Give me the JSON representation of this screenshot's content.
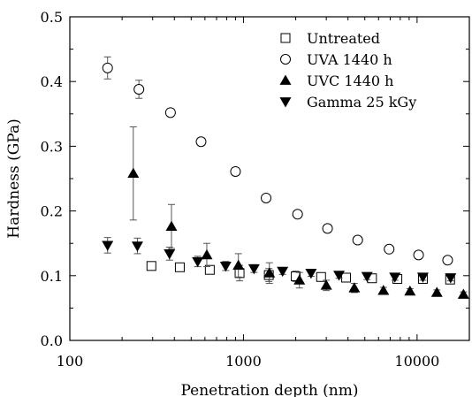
{
  "chart_data": {
    "type": "scatter",
    "xlabel": "Penetration depth (nm)",
    "ylabel": "Hardness (GPa)",
    "xscale": "log",
    "xlim": [
      100,
      20000
    ],
    "ylim": [
      0.0,
      0.5
    ],
    "xticks": [
      100,
      1000,
      10000
    ],
    "xtick_labels": [
      "100",
      "1000",
      "10000"
    ],
    "yticks": [
      0.0,
      0.1,
      0.2,
      0.3,
      0.4,
      0.5
    ],
    "ytick_labels": [
      "0.0",
      "0.1",
      "0.2",
      "0.3",
      "0.4",
      "0.5"
    ],
    "legend_position": "top-right",
    "series": [
      {
        "name": "Untreated",
        "marker": "open-square",
        "color": "#000000",
        "points": [
          {
            "x": 295,
            "y": 0.115,
            "err": 0.005
          },
          {
            "x": 430,
            "y": 0.113,
            "err": 0.004
          },
          {
            "x": 640,
            "y": 0.109,
            "err": 0.005
          },
          {
            "x": 950,
            "y": 0.104,
            "err": 0.012
          },
          {
            "x": 1400,
            "y": 0.101,
            "err": 0.01
          },
          {
            "x": 2000,
            "y": 0.099,
            "err": 0.008
          },
          {
            "x": 2800,
            "y": 0.098,
            "err": 0.006
          },
          {
            "x": 3900,
            "y": 0.097,
            "err": 0.005
          },
          {
            "x": 5500,
            "y": 0.096,
            "err": 0.005
          },
          {
            "x": 7700,
            "y": 0.095,
            "err": 0.005
          },
          {
            "x": 10800,
            "y": 0.095,
            "err": 0.005
          },
          {
            "x": 15500,
            "y": 0.094,
            "err": 0.005
          }
        ]
      },
      {
        "name": "UVA 1440 h",
        "marker": "open-circle",
        "color": "#000000",
        "points": [
          {
            "x": 165,
            "y": 0.421,
            "err": 0.017
          },
          {
            "x": 250,
            "y": 0.388,
            "err": 0.014
          },
          {
            "x": 380,
            "y": 0.352,
            "err": 0.006
          },
          {
            "x": 570,
            "y": 0.307,
            "err": 0.006
          },
          {
            "x": 900,
            "y": 0.261,
            "err": 0.006
          },
          {
            "x": 1350,
            "y": 0.22,
            "err": 0.005
          },
          {
            "x": 2050,
            "y": 0.195,
            "err": 0.005
          },
          {
            "x": 3050,
            "y": 0.173,
            "err": 0.006
          },
          {
            "x": 4550,
            "y": 0.155,
            "err": 0.005
          },
          {
            "x": 6900,
            "y": 0.141,
            "err": 0.005
          },
          {
            "x": 10200,
            "y": 0.132,
            "err": 0.005
          },
          {
            "x": 15000,
            "y": 0.124,
            "err": 0.005
          }
        ]
      },
      {
        "name": "UVC 1440 h",
        "marker": "filled-triangle-up",
        "color": "#000000",
        "points": [
          {
            "x": 232,
            "y": 0.258,
            "err": 0.072
          },
          {
            "x": 385,
            "y": 0.176,
            "err": 0.034
          },
          {
            "x": 615,
            "y": 0.132,
            "err": 0.018
          },
          {
            "x": 935,
            "y": 0.116,
            "err": 0.018
          },
          {
            "x": 1410,
            "y": 0.104,
            "err": 0.016
          },
          {
            "x": 2100,
            "y": 0.093,
            "err": 0.012
          },
          {
            "x": 3000,
            "y": 0.085,
            "err": 0.008
          },
          {
            "x": 4350,
            "y": 0.081,
            "err": 0.007
          },
          {
            "x": 6400,
            "y": 0.077,
            "err": 0.005
          },
          {
            "x": 9100,
            "y": 0.076,
            "err": 0.004
          },
          {
            "x": 13000,
            "y": 0.074,
            "err": 0.004
          },
          {
            "x": 18500,
            "y": 0.071,
            "err": 0.004
          }
        ]
      },
      {
        "name": "Gamma 25 kGy",
        "marker": "filled-triangle-down",
        "color": "#000000",
        "points": [
          {
            "x": 165,
            "y": 0.147,
            "err": 0.012
          },
          {
            "x": 245,
            "y": 0.146,
            "err": 0.012
          },
          {
            "x": 375,
            "y": 0.134,
            "err": 0.01
          },
          {
            "x": 545,
            "y": 0.122,
            "err": 0.008
          },
          {
            "x": 790,
            "y": 0.115,
            "err": 0.007
          },
          {
            "x": 1150,
            "y": 0.111,
            "err": 0.006
          },
          {
            "x": 1680,
            "y": 0.107,
            "err": 0.005
          },
          {
            "x": 2450,
            "y": 0.104,
            "err": 0.005
          },
          {
            "x": 3550,
            "y": 0.101,
            "err": 0.005
          },
          {
            "x": 5150,
            "y": 0.099,
            "err": 0.005
          },
          {
            "x": 7450,
            "y": 0.098,
            "err": 0.005
          },
          {
            "x": 10800,
            "y": 0.098,
            "err": 0.005
          },
          {
            "x": 15600,
            "y": 0.097,
            "err": 0.005
          }
        ]
      }
    ]
  }
}
